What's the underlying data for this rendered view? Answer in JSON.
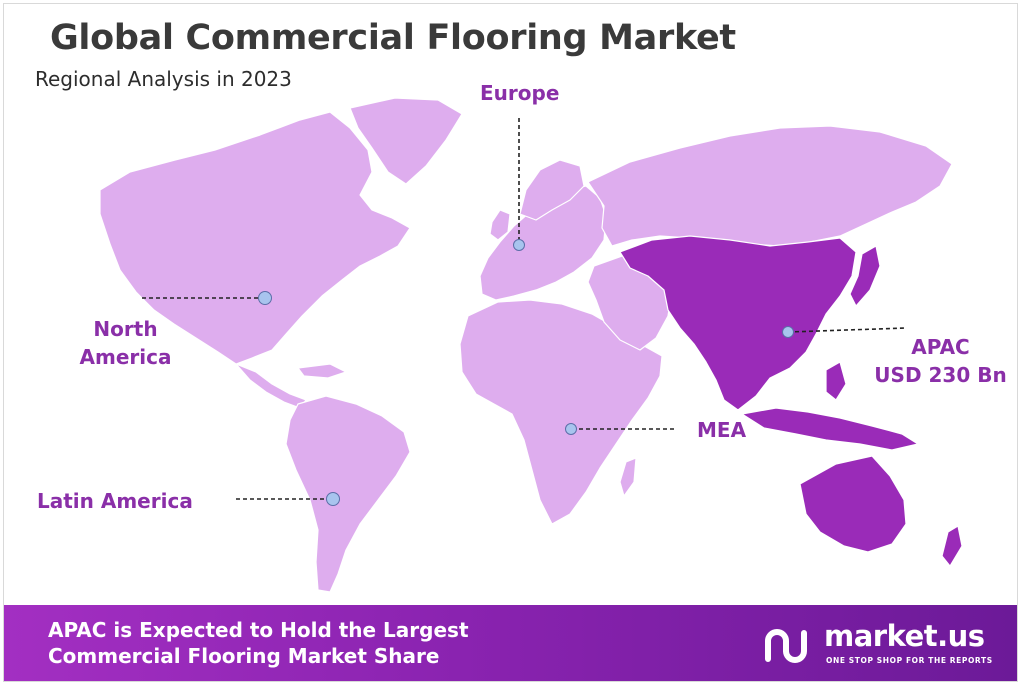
{
  "header": {
    "title": "Global Commercial Flooring Market",
    "subtitle": "Regional Analysis in 2023"
  },
  "regions": {
    "europe": {
      "label": "Europe"
    },
    "north_america": {
      "line1": "North",
      "line2": "America"
    },
    "latin_america": {
      "label": "Latin America"
    },
    "mea": {
      "label": "MEA"
    },
    "apac": {
      "line1": "APAC",
      "line2": "USD 230 Bn",
      "highlighted": true
    }
  },
  "colors": {
    "land": "#deadee",
    "highlight": "#9a2bb8",
    "label": "#8a2fa8",
    "marker": "#a8c4ee",
    "banner_start": "#a32fc2",
    "banner_end": "#6c1a98"
  },
  "banner": {
    "line1": "APAC is Expected to Hold the Largest",
    "line2": "Commercial Flooring Market Share"
  },
  "logo": {
    "name": "market.us",
    "tagline": "ONE STOP SHOP FOR THE REPORTS",
    "icon": "market-us-logo-icon"
  }
}
